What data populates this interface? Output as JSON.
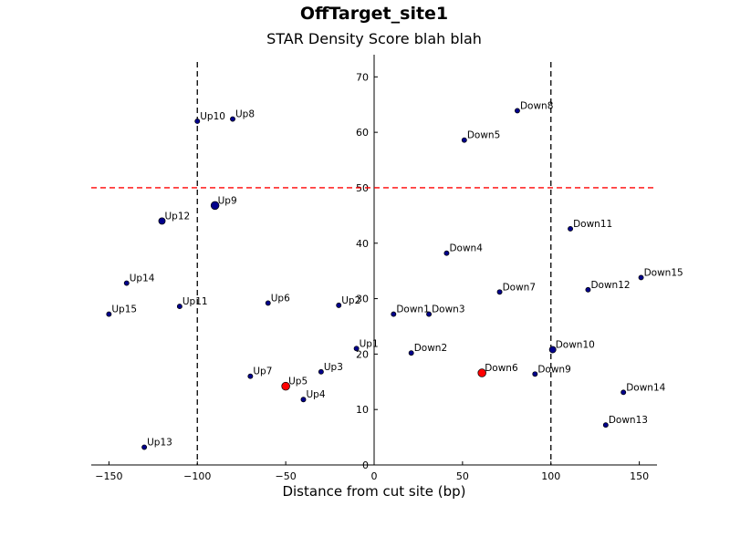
{
  "chart_data": {
    "type": "scatter",
    "title": "OffTarget_site1",
    "subtitle": "STAR Density Score blah blah",
    "xlabel": "Distance from cut site (bp)",
    "ylabel": "",
    "xlim": [
      -160,
      160
    ],
    "ylim": [
      0,
      74
    ],
    "xticks": [
      -150,
      -100,
      -50,
      0,
      50,
      100,
      150
    ],
    "yticks": [
      0,
      10,
      20,
      30,
      40,
      50,
      60,
      70
    ],
    "vertical_lines": [
      -100,
      100
    ],
    "threshold": 50,
    "grid": false,
    "colors": {
      "normal": "#00008b",
      "highlight": "#ff0000",
      "threshold": "#ff0000",
      "vlines": "#000000"
    },
    "points": [
      {
        "label": "Up1",
        "x": -10,
        "y": 21,
        "size": "small"
      },
      {
        "label": "Up2",
        "x": -20,
        "y": 28.8,
        "size": "small"
      },
      {
        "label": "Up3",
        "x": -30,
        "y": 16.8,
        "size": "small"
      },
      {
        "label": "Up4",
        "x": -40,
        "y": 11.8,
        "size": "small"
      },
      {
        "label": "Up5",
        "x": -50,
        "y": 14.2,
        "size": "large",
        "highlight": true
      },
      {
        "label": "Up6",
        "x": -60,
        "y": 29.2,
        "size": "small"
      },
      {
        "label": "Up7",
        "x": -70,
        "y": 16.0,
        "size": "small"
      },
      {
        "label": "Up8",
        "x": -80,
        "y": 62.4,
        "size": "small"
      },
      {
        "label": "Up9",
        "x": -90,
        "y": 46.8,
        "size": "large"
      },
      {
        "label": "Up10",
        "x": -100,
        "y": 62.0,
        "size": "small"
      },
      {
        "label": "Up11",
        "x": -110,
        "y": 28.6,
        "size": "small"
      },
      {
        "label": "Up12",
        "x": -120,
        "y": 44.0,
        "size": "medium"
      },
      {
        "label": "Up13",
        "x": -130,
        "y": 3.2,
        "size": "small"
      },
      {
        "label": "Up14",
        "x": -140,
        "y": 32.8,
        "size": "small"
      },
      {
        "label": "Up15",
        "x": -150,
        "y": 27.2,
        "size": "small"
      },
      {
        "label": "Down1",
        "x": 11,
        "y": 27.2,
        "size": "small"
      },
      {
        "label": "Down2",
        "x": 21,
        "y": 20.2,
        "size": "small"
      },
      {
        "label": "Down3",
        "x": 31,
        "y": 27.2,
        "size": "small"
      },
      {
        "label": "Down4",
        "x": 41,
        "y": 38.2,
        "size": "small"
      },
      {
        "label": "Down5",
        "x": 51,
        "y": 58.6,
        "size": "small"
      },
      {
        "label": "Down6",
        "x": 61,
        "y": 16.6,
        "size": "large",
        "highlight": true
      },
      {
        "label": "Down7",
        "x": 71,
        "y": 31.2,
        "size": "small"
      },
      {
        "label": "Down8",
        "x": 81,
        "y": 63.9,
        "size": "small"
      },
      {
        "label": "Down9",
        "x": 91,
        "y": 16.4,
        "size": "small"
      },
      {
        "label": "Down10",
        "x": 101,
        "y": 20.8,
        "size": "medium"
      },
      {
        "label": "Down11",
        "x": 111,
        "y": 42.6,
        "size": "small"
      },
      {
        "label": "Down12",
        "x": 121,
        "y": 31.6,
        "size": "small"
      },
      {
        "label": "Down13",
        "x": 131,
        "y": 7.2,
        "size": "small"
      },
      {
        "label": "Down14",
        "x": 141,
        "y": 13.1,
        "size": "small"
      },
      {
        "label": "Down15",
        "x": 151,
        "y": 33.8,
        "size": "small"
      }
    ]
  }
}
